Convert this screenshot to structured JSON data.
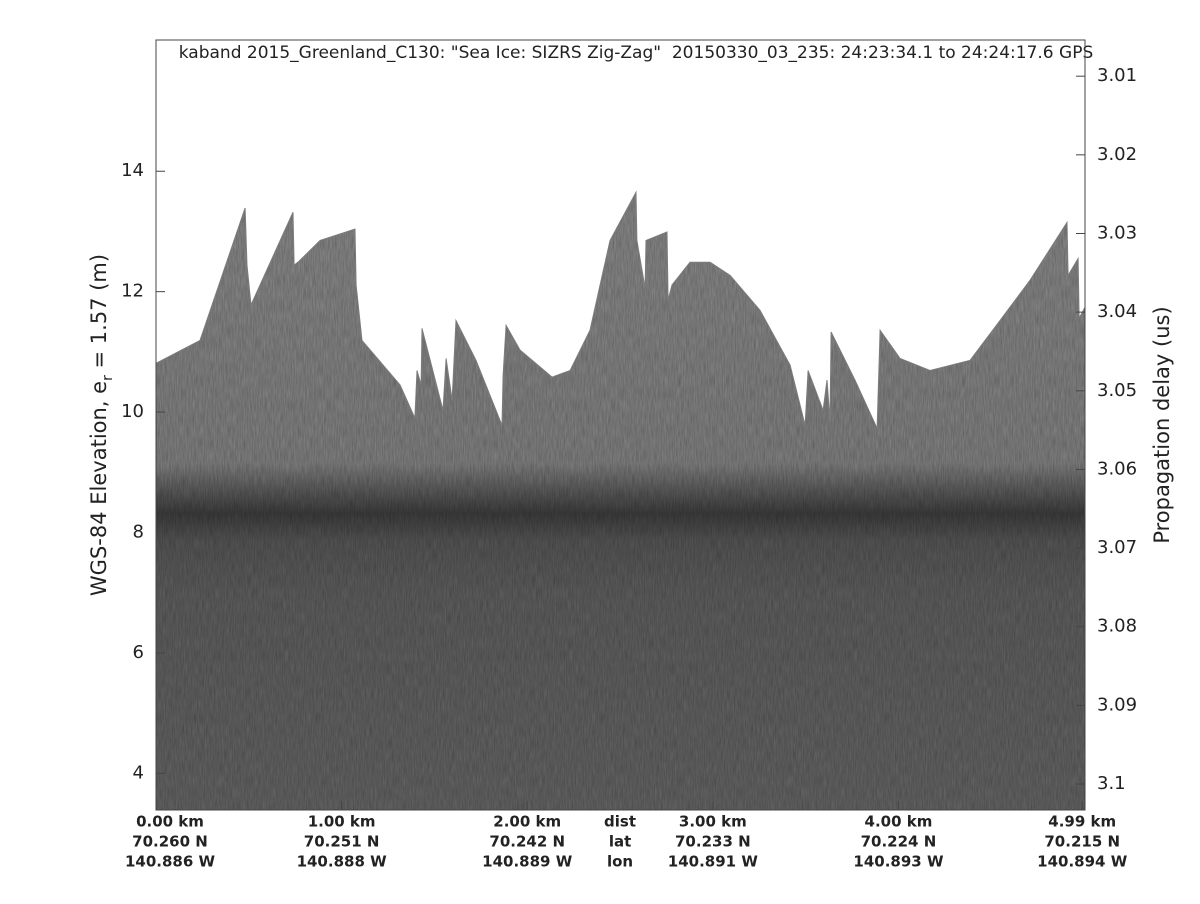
{
  "chart_data": {
    "type": "echogram",
    "title": "kaband 2015_Greenland_C130: \"Sea Ice: SIZRS Zig-Zag\"  20150330_03_235: 24:23:34.1 to 24:24:17.6 GPS",
    "y_label": {
      "text": "WGS-84 Elevation, e",
      "subscript": "r",
      "suffix": " = 1.57 (m)"
    },
    "y2_label": "Propagation delay (us)",
    "xlim": [
      0,
      5.005
    ],
    "xticks": [
      {
        "value": 0,
        "label": "0.00 km"
      },
      {
        "value": 1,
        "label": "1.00 km"
      },
      {
        "value": 2,
        "label": "2.00 km"
      },
      {
        "value": 3,
        "label": "3.00 km"
      },
      {
        "value": 4,
        "label": "4.00 km"
      },
      {
        "value": 4.99,
        "label": "4.99 km"
      }
    ],
    "xtick_lat": [
      "70.260 N",
      "70.251 N",
      "70.242 N",
      "70.233 N",
      "70.224 N",
      "70.215 N"
    ],
    "xtick_lon": [
      "140.886 W",
      "140.888 W",
      "140.889 W",
      "140.891 W",
      "140.893 W",
      "140.894 W"
    ],
    "xtick_row_names": [
      "dist",
      "lat",
      "lon"
    ],
    "ylim": [
      3.39,
      16.18
    ],
    "yticks": [
      4,
      6,
      8,
      10,
      12,
      14
    ],
    "y2lim": [
      3.1033,
      3.0054
    ],
    "y2ticks": [
      3.01,
      3.02,
      3.03,
      3.04,
      3.05,
      3.06,
      3.07,
      3.08,
      3.09,
      3.1
    ],
    "surface": {
      "name": "surface",
      "color": "#7c7c7c",
      "x": [
        0,
        0.237,
        0.48,
        0.49,
        0.512,
        0.738,
        0.744,
        0.765,
        0.884,
        1.072,
        1.078,
        1.11,
        1.315,
        1.395,
        1.406,
        1.428,
        1.433,
        1.546,
        1.563,
        1.595,
        1.616,
        1.724,
        1.864,
        1.87,
        1.886,
        1.961,
        2.134,
        2.231,
        2.338,
        2.446,
        2.586,
        2.591,
        2.635,
        2.64,
        2.753,
        2.759,
        2.78,
        2.877,
        2.985,
        3.093,
        3.254,
        3.416,
        3.497,
        3.513,
        3.594,
        3.615,
        3.631,
        3.637,
        3.766,
        3.885,
        3.901,
        4.009,
        4.17,
        4.386,
        4.547,
        4.709,
        4.908,
        4.914,
        4.968,
        4.973,
        5.005
      ],
      "values": [
        10.81,
        11.19,
        13.39,
        12.44,
        11.78,
        13.32,
        12.44,
        12.49,
        12.85,
        13.04,
        12.11,
        11.19,
        10.45,
        9.9,
        10.69,
        10.45,
        11.39,
        10.03,
        10.89,
        10.2,
        11.52,
        10.86,
        9.78,
        10.61,
        11.44,
        11.03,
        10.58,
        10.69,
        11.36,
        12.85,
        13.65,
        12.85,
        12.06,
        12.85,
        12.99,
        11.86,
        12.11,
        12.49,
        12.49,
        12.27,
        11.69,
        10.78,
        9.78,
        10.69,
        10.03,
        10.53,
        9.86,
        11.33,
        10.53,
        9.73,
        11.36,
        10.89,
        10.69,
        10.86,
        11.52,
        12.19,
        13.15,
        12.27,
        12.55,
        11.56,
        11.74
      ]
    }
  }
}
